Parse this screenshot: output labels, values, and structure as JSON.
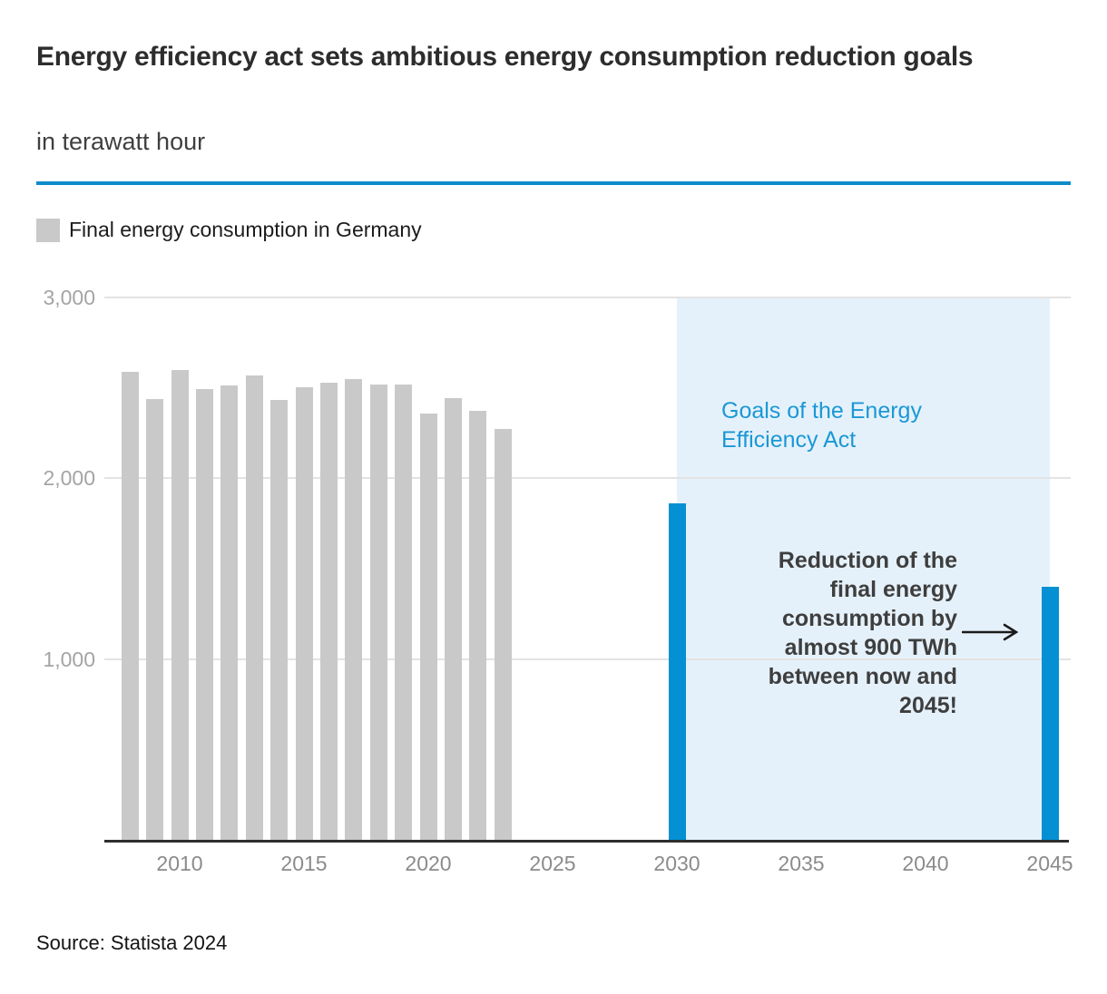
{
  "header": {
    "title": "Energy efficiency act sets ambitious energy consumption reduction goals",
    "subtitle": "in terawatt hour"
  },
  "legend": {
    "label": "Final energy consumption in Germany"
  },
  "annotations": {
    "goals_label": "Goals of the Energy Efficiency Act",
    "reduction_note": "Reduction of the final energy consumption by almost 900 TWh between now and 2045!"
  },
  "footer": {
    "source": "Source: Statista 2024"
  },
  "colors": {
    "accent_rule_blue": "#0e8cca",
    "bar_blue": "#0490d2",
    "bar_gray": "#c9c9c9",
    "region_light_blue": "#e5f1fa",
    "goals_text_blue": "#1a98d6",
    "gridline_gray": "#e3e3e3",
    "axis_dark": "#2e2e2e"
  },
  "chart_data": {
    "type": "bar",
    "title": "Energy efficiency act sets ambitious energy consumption reduction goals",
    "xlabel": "",
    "ylabel": "terawatt hour",
    "ylim": [
      0,
      3000
    ],
    "grid": true,
    "legend_position": "top-left",
    "y_ticks": [
      {
        "value": 1000,
        "label": "1,000"
      },
      {
        "value": 2000,
        "label": "2,000"
      },
      {
        "value": 3000,
        "label": "3,000"
      }
    ],
    "x_ticks": [
      2010,
      2015,
      2020,
      2025,
      2030,
      2035,
      2040,
      2045
    ],
    "series": [
      {
        "name": "Final energy consumption in Germany",
        "color_key": "bar_gray",
        "x": [
          2008,
          2009,
          2010,
          2011,
          2012,
          2013,
          2014,
          2015,
          2016,
          2017,
          2018,
          2019,
          2020,
          2021,
          2022,
          2023
        ],
        "values": [
          2590,
          2435,
          2600,
          2490,
          2515,
          2570,
          2430,
          2505,
          2530,
          2550,
          2520,
          2520,
          2355,
          2440,
          2370,
          2270
        ]
      },
      {
        "name": "Goals of the Energy Efficiency Act",
        "color_key": "bar_blue",
        "x": [
          2030,
          2045
        ],
        "values": [
          1860,
          1400
        ]
      }
    ],
    "highlight_region": {
      "x_start": 2030,
      "x_end": 2045,
      "color_key": "region_light_blue"
    }
  }
}
